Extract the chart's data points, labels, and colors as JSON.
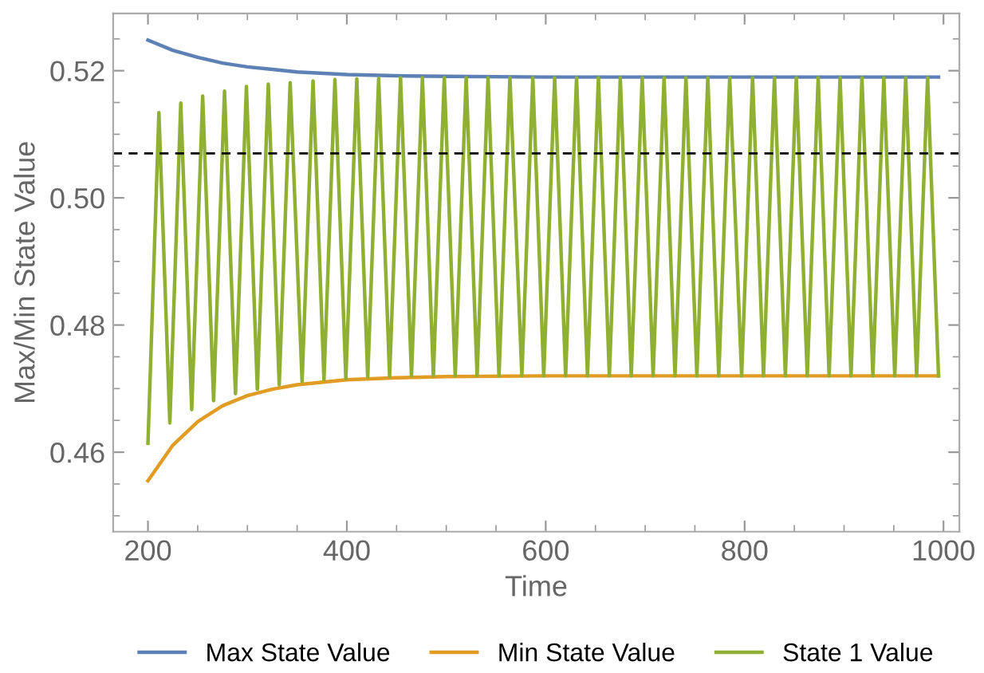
{
  "chart_data": {
    "type": "line",
    "xlabel": "Time",
    "ylabel": "Max/Min State Value",
    "xlim": [
      165,
      1016
    ],
    "ylim": [
      0.4475,
      0.529
    ],
    "xticks": [
      200,
      400,
      600,
      800,
      1000
    ],
    "yticks": [
      {
        "value": 0.46,
        "label": "0.46"
      },
      {
        "value": 0.48,
        "label": "0.48"
      },
      {
        "value": 0.5,
        "label": "0.50"
      },
      {
        "value": 0.52,
        "label": "0.52"
      }
    ],
    "grid": false,
    "legend": "bottom",
    "line_style": "solid",
    "marker": "none",
    "ref_lines": [
      {
        "axis": "y",
        "value": 0.507,
        "color": "#000000",
        "line_style": "dashed"
      }
    ],
    "series": [
      {
        "name": "Max State Value",
        "color": "#5e81b5",
        "x": [
          200,
          225,
          250,
          275,
          300,
          325,
          350,
          400,
          450,
          500,
          600,
          800,
          995
        ],
        "values": [
          0.5248,
          0.5232,
          0.5221,
          0.5212,
          0.5206,
          0.5202,
          0.5198,
          0.5194,
          0.5192,
          0.5191,
          0.519,
          0.519,
          0.519
        ]
      },
      {
        "name": "Min State Value",
        "color": "#e19c24",
        "x": [
          200,
          225,
          250,
          275,
          300,
          325,
          350,
          400,
          450,
          500,
          600,
          800,
          995
        ],
        "values": [
          0.4555,
          0.4611,
          0.4648,
          0.4673,
          0.4689,
          0.4699,
          0.4706,
          0.4714,
          0.4717,
          0.4719,
          0.472,
          0.472,
          0.472
        ]
      },
      {
        "name": "State 1 Value",
        "color": "#8fb032",
        "x": [
          200,
          211,
          222,
          233,
          244,
          255,
          266,
          277,
          288,
          299,
          310,
          321,
          332,
          343,
          355,
          366,
          377,
          388,
          399,
          410,
          421,
          432,
          443,
          454,
          465,
          476,
          487,
          498,
          509,
          520,
          531,
          542,
          553,
          564,
          576,
          587,
          598,
          609,
          620,
          631,
          642,
          653,
          664,
          675,
          686,
          697,
          708,
          719,
          730,
          741,
          752,
          763,
          774,
          785,
          797,
          808,
          819,
          830,
          841,
          852,
          863,
          874,
          885,
          896,
          907,
          918,
          929,
          940,
          951,
          962,
          973,
          984,
          995
        ],
        "values": [
          0.4614,
          0.5134,
          0.4646,
          0.5149,
          0.4667,
          0.516,
          0.4681,
          0.5168,
          0.4692,
          0.5175,
          0.4699,
          0.5179,
          0.4706,
          0.5181,
          0.4711,
          0.5184,
          0.4714,
          0.5186,
          0.4716,
          0.5187,
          0.4718,
          0.5188,
          0.4719,
          0.5189,
          0.472,
          0.5189,
          0.472,
          0.5189,
          0.472,
          0.5189,
          0.472,
          0.5189,
          0.472,
          0.5189,
          0.472,
          0.5189,
          0.472,
          0.5189,
          0.472,
          0.5189,
          0.472,
          0.5189,
          0.472,
          0.5189,
          0.472,
          0.5189,
          0.472,
          0.5189,
          0.472,
          0.5189,
          0.472,
          0.5189,
          0.472,
          0.5189,
          0.472,
          0.5189,
          0.472,
          0.5189,
          0.472,
          0.5189,
          0.472,
          0.5189,
          0.472,
          0.5189,
          0.472,
          0.5189,
          0.472,
          0.5189,
          0.472,
          0.5189,
          0.472,
          0.5189,
          0.472
        ]
      }
    ]
  }
}
